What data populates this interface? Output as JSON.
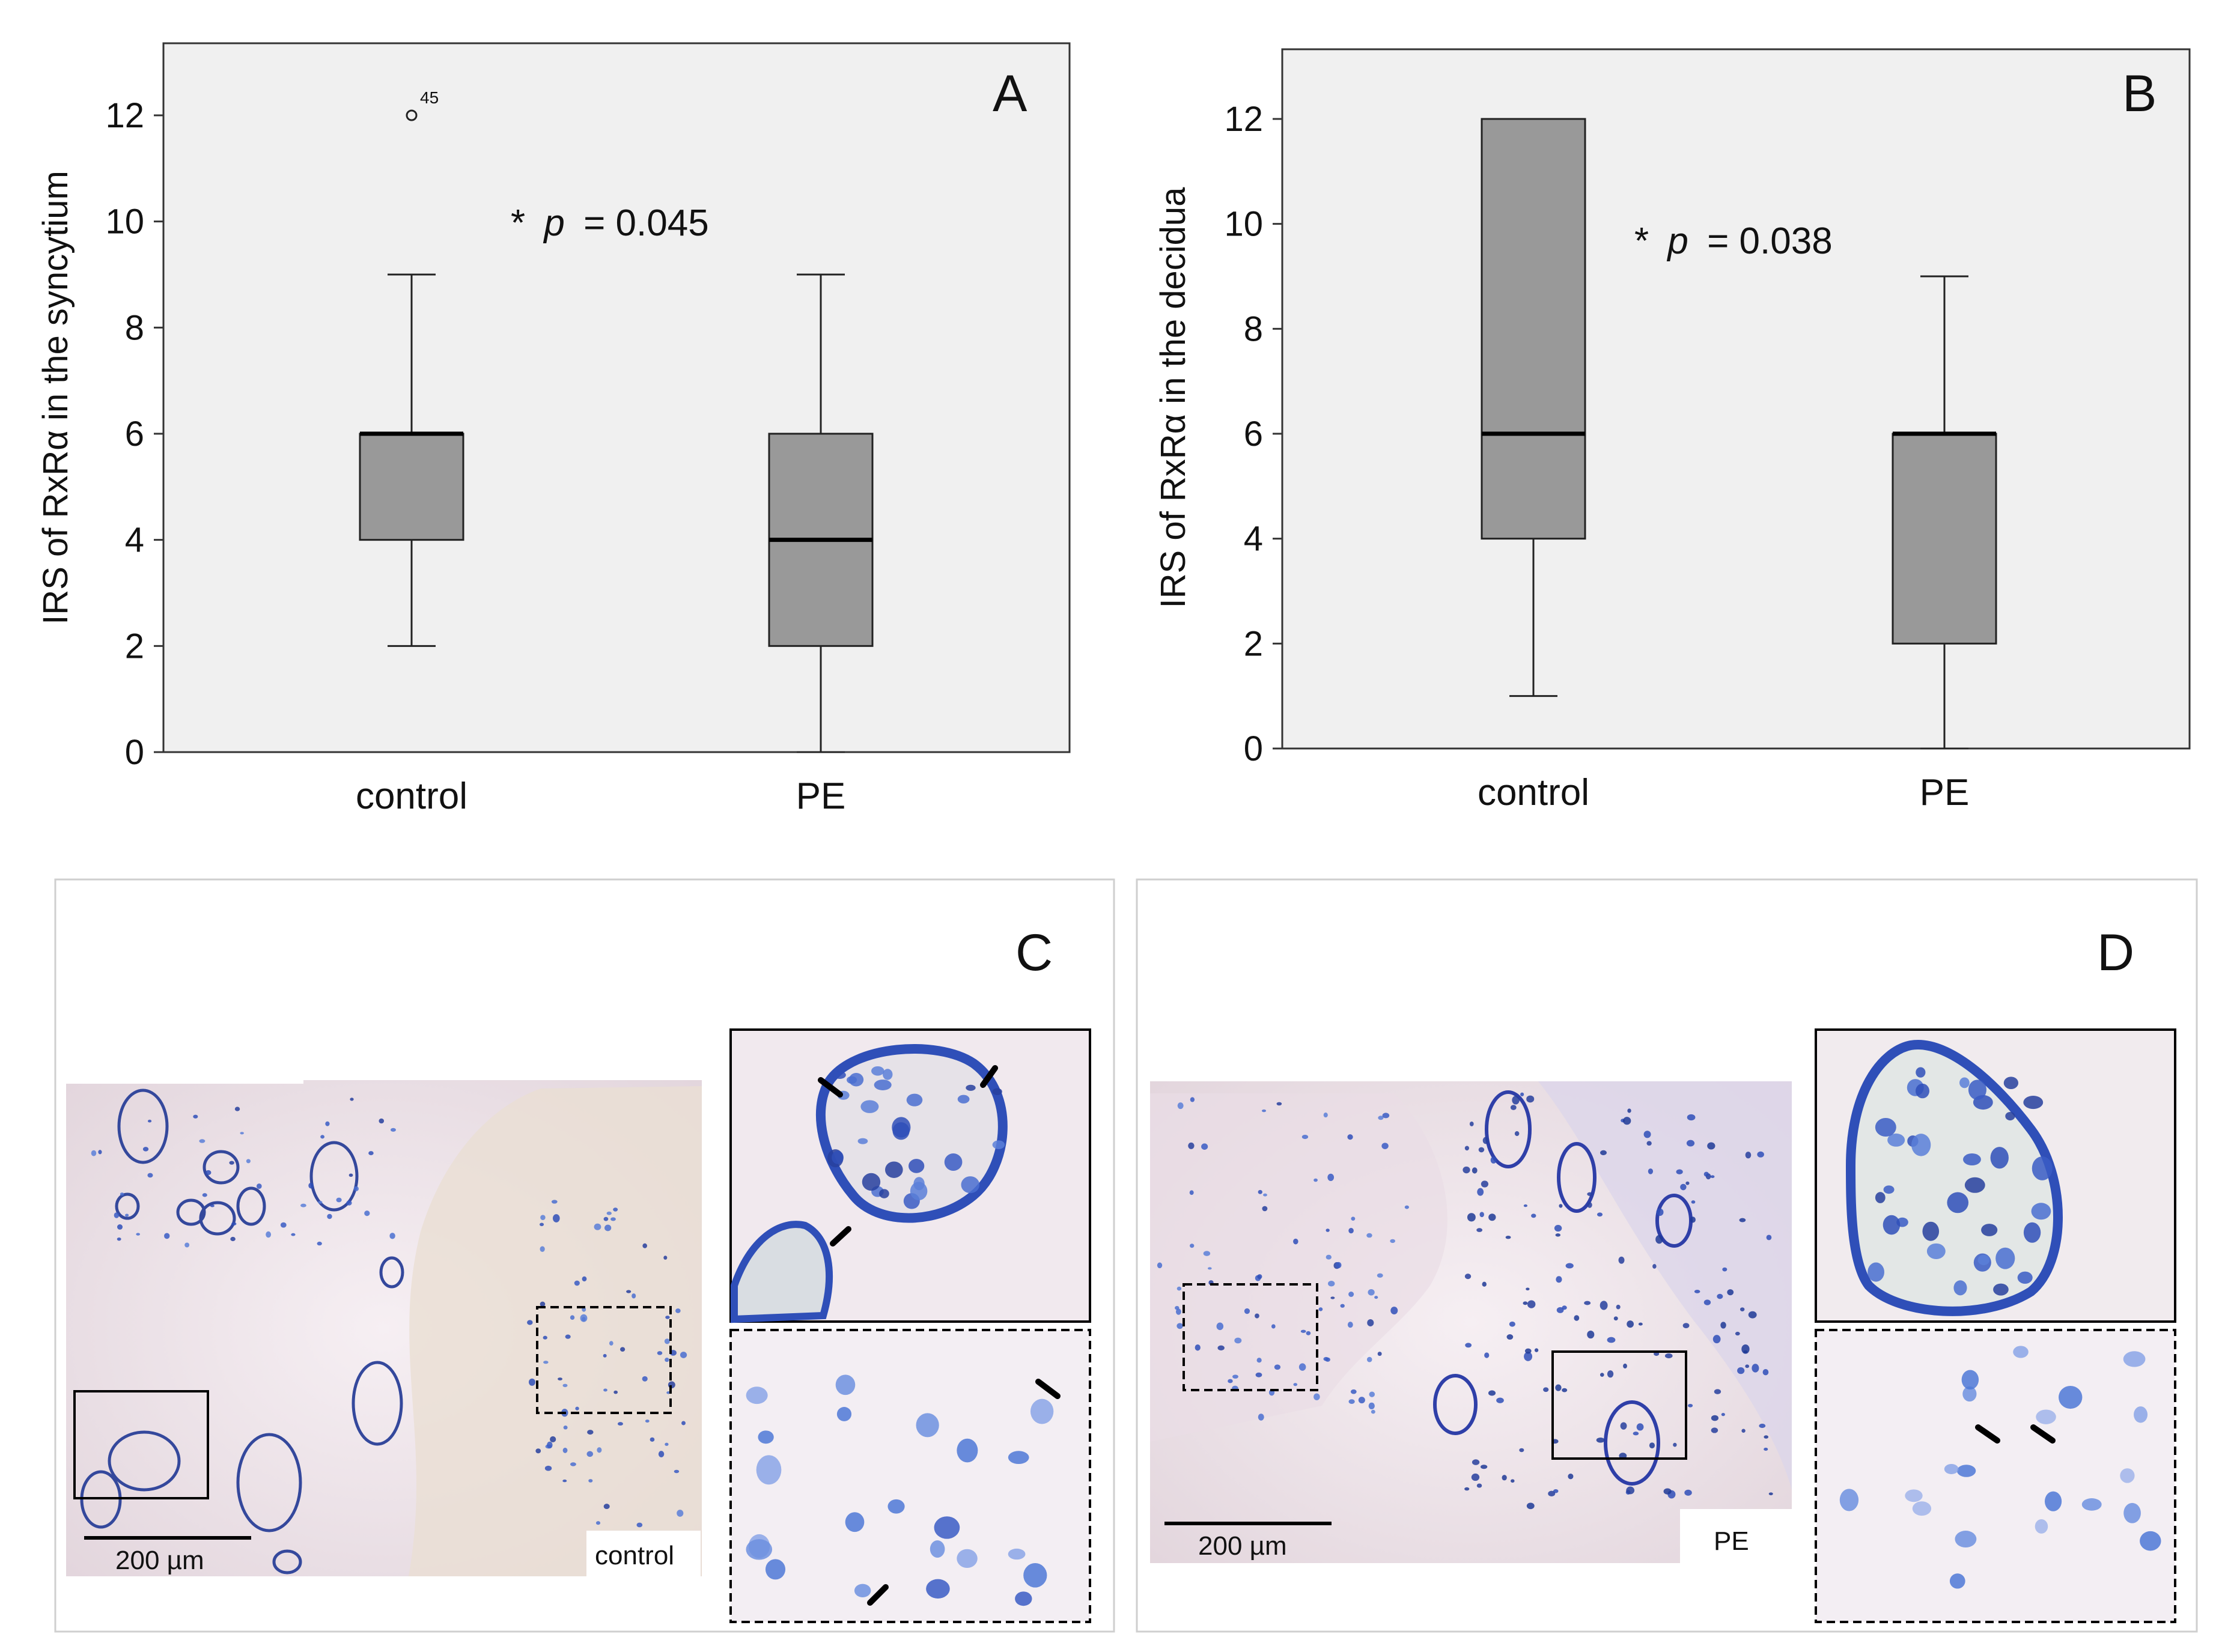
{
  "chart_data": [
    {
      "panel": "A",
      "type": "box",
      "ylabel": "IRS of RxRα in the syncytium",
      "ylim": [
        0,
        13.2
      ],
      "yticks": [
        0,
        2,
        4,
        6,
        8,
        10,
        12
      ],
      "annotation": {
        "star": "*",
        "p_label": "p",
        "p_value": "= 0.045"
      },
      "boxes": [
        {
          "category": "control",
          "whisker_low": 2,
          "q1": 4,
          "median": 6,
          "q3": 6,
          "whisker_high": 9
        },
        {
          "category": "PE",
          "whisker_low": 0,
          "q1": 2,
          "median": 4,
          "q3": 6,
          "whisker_high": 9
        }
      ],
      "outliers": [
        {
          "category": "control",
          "value": 12,
          "label": "45"
        }
      ]
    },
    {
      "panel": "B",
      "type": "box",
      "ylabel": "IRS of RxRα in the decidua",
      "ylim": [
        0,
        13.2
      ],
      "yticks": [
        0,
        2,
        4,
        6,
        8,
        10,
        12
      ],
      "annotation": {
        "star": "*",
        "p_label": "p",
        "p_value": "= 0.038"
      },
      "boxes": [
        {
          "category": "control",
          "whisker_low": 1,
          "q1": 4,
          "median": 6,
          "q3": 12,
          "whisker_high": 12
        },
        {
          "category": "PE",
          "whisker_low": 0,
          "q1": 2,
          "median": 6,
          "q3": 6,
          "whisker_high": 9
        }
      ],
      "outliers": []
    }
  ],
  "micrographs": [
    {
      "panel": "C",
      "scale_label": "200 µm",
      "group_label": "control"
    },
    {
      "panel": "D",
      "scale_label": "200 µm",
      "group_label": "PE"
    }
  ],
  "colors": {
    "plot_bg": "#f0f0f0",
    "box_fill": "#999999",
    "tissue_bg": "#eee5ea",
    "nucleus": "#2f4fb8"
  }
}
